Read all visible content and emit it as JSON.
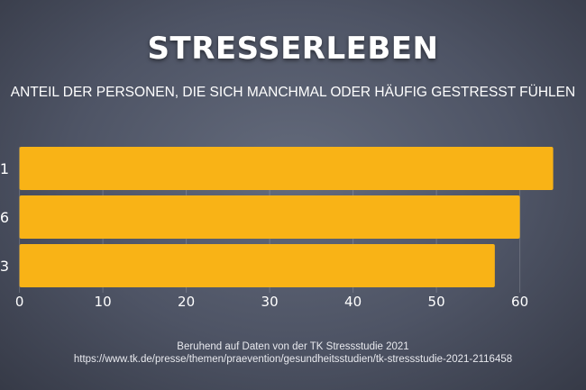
{
  "chart_data": {
    "type": "bar",
    "orientation": "horizontal",
    "title": "STRESSERLEBEN",
    "subtitle": "ANTEIL DER PERSONEN, DIE SICH MANCHMAL ODER HÄUFIG GESTRESST FÜHLEN",
    "categories": [
      "1",
      "6",
      "3"
    ],
    "values": [
      64,
      60,
      57
    ],
    "xlim": [
      0,
      65
    ],
    "xticks": [
      "0",
      "10",
      "20",
      "30",
      "40",
      "50",
      "60"
    ],
    "grid": true,
    "bar_color": "#f9b316",
    "source": [
      "Beruhend auf Daten von der TK Stressstudie 2021",
      "https://www.tk.de/presse/themen/praevention/gesundheitsstudien/tk-stressstudie-2021-2116458"
    ]
  }
}
